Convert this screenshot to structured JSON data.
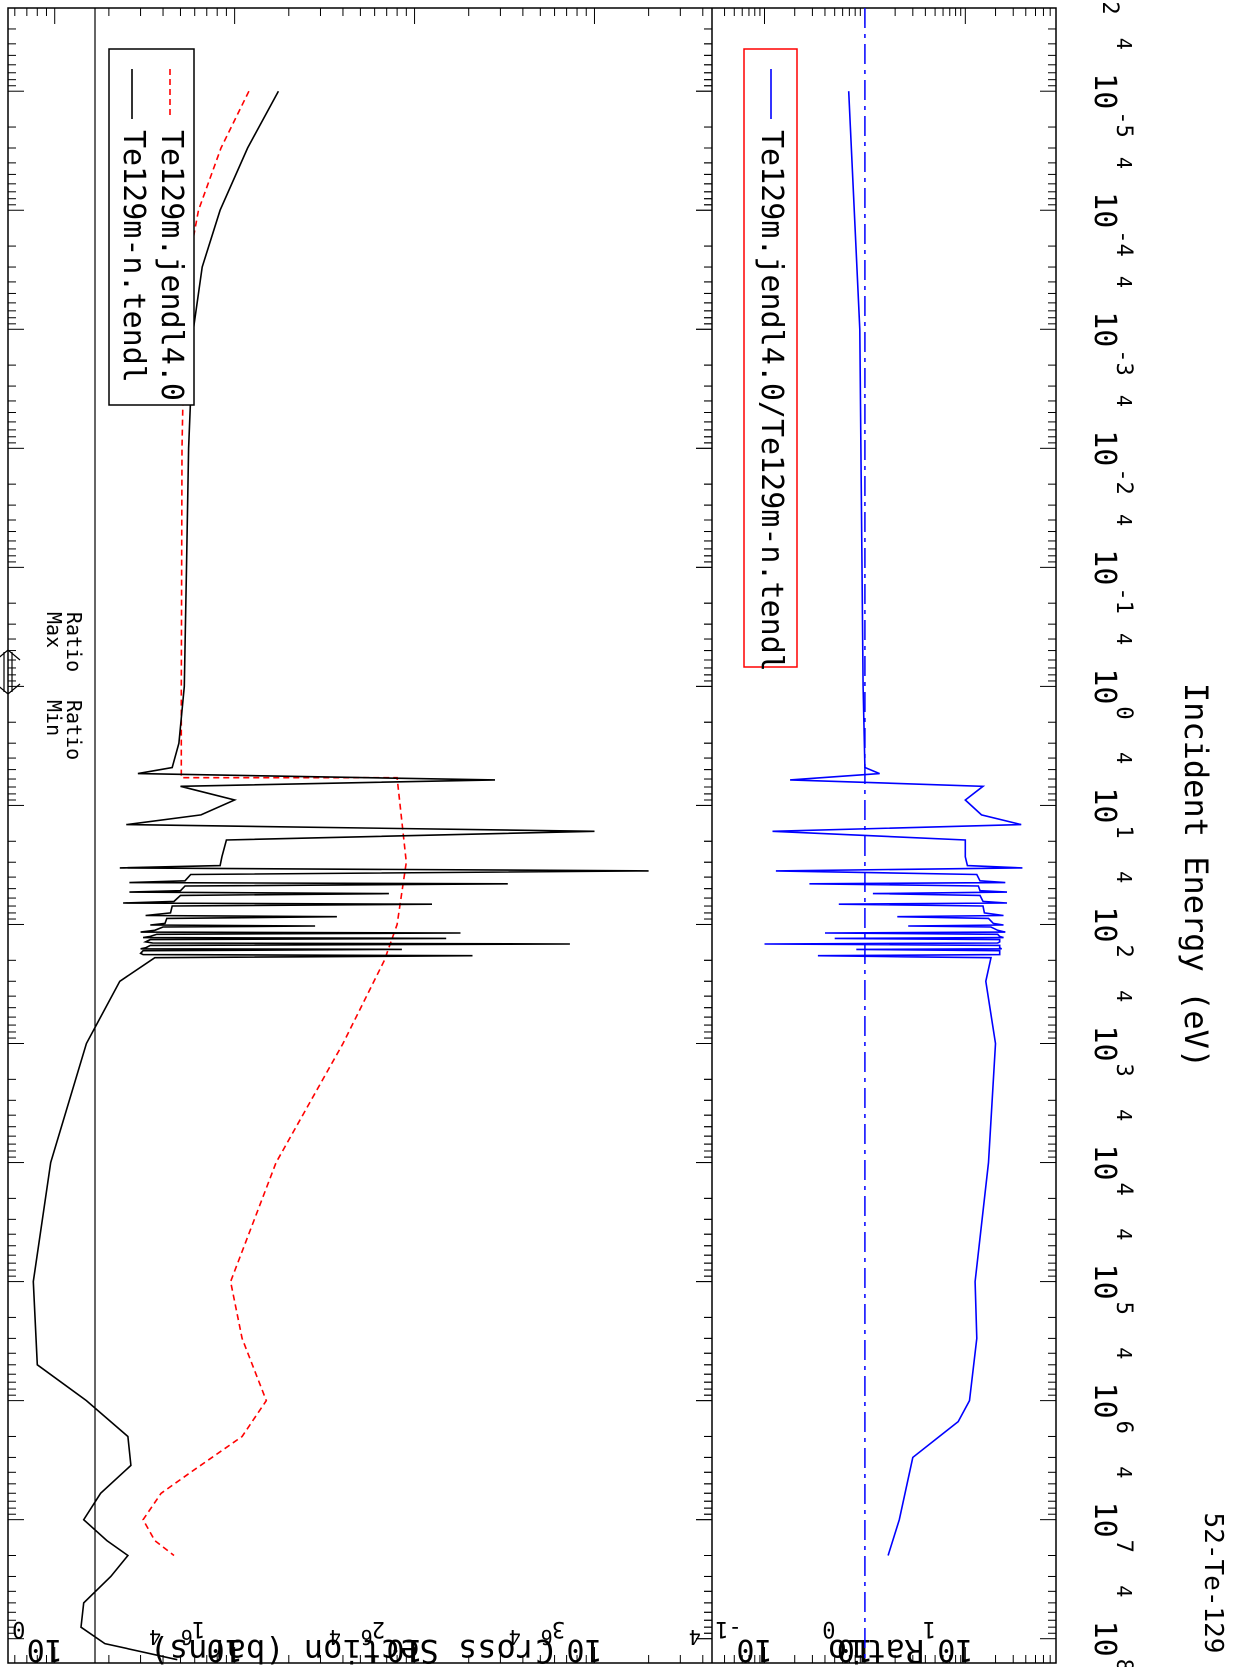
{
  "chart_data": {
    "type": "line",
    "orientation": "rotated-90-clockwise",
    "tag": "52-Te-129",
    "xlabel": "Incident Energy (eV)",
    "xscale": "log",
    "xlim": [
      2e-06,
      160000000.0
    ],
    "x_ticks": [
      {
        "major": "10",
        "exp": "-5"
      },
      {
        "major": "10",
        "exp": "-4"
      },
      {
        "major": "10",
        "exp": "-3"
      },
      {
        "major": "10",
        "exp": "-2"
      },
      {
        "major": "10",
        "exp": "-1"
      },
      {
        "major": "10",
        "exp": "0"
      },
      {
        "major": "10",
        "exp": "1"
      },
      {
        "major": "10",
        "exp": "2"
      },
      {
        "major": "10",
        "exp": "3"
      },
      {
        "major": "10",
        "exp": "4"
      },
      {
        "major": "10",
        "exp": "5"
      },
      {
        "major": "10",
        "exp": "6"
      },
      {
        "major": "10",
        "exp": "7"
      },
      {
        "major": "10",
        "exp": "8"
      }
    ],
    "x_minor_labels": {
      "two": "2",
      "four": "4"
    },
    "top_panel": {
      "ylabel": "Cross Section (barns)",
      "yscale": "log",
      "ylim": [
        0.55,
        4500
      ],
      "y_ticks": [
        {
          "major": "10",
          "exp": "0"
        },
        {
          "major": "10",
          "exp": "1"
        },
        {
          "major": "10",
          "exp": "2"
        },
        {
          "major": "10",
          "exp": "3"
        }
      ],
      "y_minor_labels": {
        "four": "4",
        "six": "6"
      },
      "legend": {
        "position": "bottom-left",
        "border": "#000000"
      },
      "series": [
        {
          "name": "Te129m-n.tendl",
          "color": "#000000",
          "dash": "solid",
          "points": [
            [
              1e-05,
              17.5
            ],
            [
              3e-05,
              11.8
            ],
            [
              0.0001,
              8.3
            ],
            [
              0.0003,
              6.6
            ],
            [
              0.001,
              5.9
            ],
            [
              0.01,
              5.55
            ],
            [
              0.1,
              5.4
            ],
            [
              1,
              5.25
            ],
            [
              3,
              4.9
            ],
            [
              4.8,
              4.5
            ],
            [
              5.4,
              2.9
            ],
            [
              6.1,
              280
            ],
            [
              6.9,
              5.0
            ],
            [
              9,
              10
            ],
            [
              12,
              6.5
            ],
            [
              14.5,
              2.5
            ],
            [
              16.5,
              1000
            ],
            [
              19.5,
              9.0
            ],
            [
              27,
              8.5
            ],
            [
              32,
              8.3
            ],
            [
              33.5,
              2.3
            ],
            [
              35.5,
              2000
            ],
            [
              38,
              5.7
            ],
            [
              43,
              5.3
            ],
            [
              44.5,
              2.6
            ],
            [
              45.5,
              330
            ],
            [
              47.5,
              5.3
            ],
            [
              52,
              5.0
            ],
            [
              53.5,
              2.6
            ],
            [
              55,
              72
            ],
            [
              57,
              5.0
            ],
            [
              64,
              4.6
            ],
            [
              66,
              2.4
            ],
            [
              67.5,
              125
            ],
            [
              70,
              4.5
            ],
            [
              80,
              4.4
            ],
            [
              84,
              3.2
            ],
            [
              86,
              37
            ],
            [
              89,
              4.2
            ],
            [
              98,
              4.1
            ],
            [
              101,
              3.4
            ],
            [
              103,
              28
            ],
            [
              105,
              4.0
            ],
            [
              112,
              3.6
            ],
            [
              116,
              3.0
            ],
            [
              118,
              180
            ],
            [
              121,
              3.7
            ],
            [
              126,
              3.4
            ],
            [
              129,
              3.1
            ],
            [
              131,
              150
            ],
            [
              134,
              3.4
            ],
            [
              140,
              3.2
            ],
            [
              143,
              3.5
            ],
            [
              146,
              730
            ],
            [
              150,
              3.4
            ],
            [
              157,
              3.2
            ],
            [
              160,
              3.0
            ],
            [
              162,
              85
            ],
            [
              166,
              3.1
            ],
            [
              175,
              3.0
            ],
            [
              179,
              3.1
            ],
            [
              183,
              210
            ],
            [
              187,
              24
            ],
            [
              190,
              3.6
            ],
            [
              300,
              2.3
            ],
            [
              1000,
              1.5
            ],
            [
              10000.0,
              0.95
            ],
            [
              100000.0,
              0.76
            ],
            [
              500000.0,
              0.8
            ],
            [
              1000000.0,
              1.5
            ],
            [
              2000000.0,
              2.55
            ],
            [
              3500000.0,
              2.65
            ],
            [
              6000000.0,
              1.8
            ],
            [
              10000000.0,
              1.45
            ],
            [
              15000000.0,
              1.95
            ],
            [
              20000000.0,
              2.55
            ],
            [
              30000000.0,
              2.05
            ],
            [
              50000000.0,
              1.45
            ],
            [
              80000000.0,
              1.4
            ],
            [
              110000000.0,
              1.9
            ],
            [
              150000000.0,
              4.8
            ]
          ]
        },
        {
          "name": "Te129m.jendl4.0",
          "color": "#ff0000",
          "dash": "6,4",
          "points": [
            [
              1e-05,
              12
            ],
            [
              3e-05,
              8.4
            ],
            [
              0.0001,
              6.3
            ],
            [
              0.0003,
              5.5
            ],
            [
              0.001,
              5.25
            ],
            [
              0.01,
              5.1
            ],
            [
              1,
              5.05
            ],
            [
              5.85,
              5.05
            ],
            [
              5.85,
              80
            ],
            [
              30,
              90
            ],
            [
              100,
              80
            ],
            [
              200,
              68
            ],
            [
              1000,
              40
            ],
            [
              10000.0,
              17
            ],
            [
              100000.0,
              9.5
            ],
            [
              300000.0,
              11
            ],
            [
              1000000.0,
              15
            ],
            [
              2000000.0,
              11
            ],
            [
              4000000.0,
              5.7
            ],
            [
              6000000.0,
              3.9
            ],
            [
              10000000.0,
              3.1
            ],
            [
              15000000.0,
              3.6
            ],
            [
              20000000.0,
              4.6
            ]
          ]
        }
      ]
    },
    "bottom_panel": {
      "ylabel": "Ratio",
      "yscale": "log",
      "ylim": [
        0.03,
        80
      ],
      "y_ticks": [
        {
          "major": "10",
          "exp": "-1"
        },
        {
          "major": "10",
          "exp": "0"
        },
        {
          "major": "10",
          "exp": "1"
        }
      ],
      "reference_line": {
        "y": 1.0,
        "style": "dash-dot",
        "color": "#0000ff"
      },
      "legend": {
        "position": "bottom-left",
        "border": "#ff0000"
      },
      "series": [
        {
          "name": "Te129m.jendl4.0/Te129m-n.tendl",
          "color": "#0000ff",
          "dash": "solid",
          "points": [
            [
              1e-05,
              0.69
            ],
            [
              0.001,
              0.89
            ],
            [
              1,
              0.96
            ],
            [
              4.8,
              1.0
            ],
            [
              5.4,
              1.4
            ],
            [
              6.1,
              0.18
            ],
            [
              6.9,
              15
            ],
            [
              9,
              10
            ],
            [
              12,
              14.5
            ],
            [
              14.5,
              36
            ],
            [
              16.5,
              0.12
            ],
            [
              19.5,
              10
            ],
            [
              27,
              10
            ],
            [
              32,
              10.5
            ],
            [
              33.5,
              37
            ],
            [
              35.5,
              0.13
            ],
            [
              38,
              13
            ],
            [
              43,
              14
            ],
            [
              44.5,
              25
            ],
            [
              45.5,
              0.28
            ],
            [
              47.5,
              13.5
            ],
            [
              52,
              14
            ],
            [
              53.5,
              26
            ],
            [
              55,
              1.2
            ],
            [
              57,
              14
            ],
            [
              64,
              15
            ],
            [
              66,
              26
            ],
            [
              67.5,
              0.55
            ],
            [
              70,
              15
            ],
            [
              80,
              15.5
            ],
            [
              84,
              24
            ],
            [
              86,
              2.1
            ],
            [
              89,
              17
            ],
            [
              98,
              19
            ],
            [
              101,
              24
            ],
            [
              103,
              2.7
            ],
            [
              105,
              18
            ],
            [
              112,
              21
            ],
            [
              116,
              25
            ],
            [
              118,
              0.4
            ],
            [
              121,
              21
            ],
            [
              126,
              22
            ],
            [
              129,
              24
            ],
            [
              131,
              0.5
            ],
            [
              134,
              22
            ],
            [
              140,
              22
            ],
            [
              143,
              21
            ],
            [
              146,
              0.1
            ],
            [
              150,
              22
            ],
            [
              157,
              22
            ],
            [
              160,
              23
            ],
            [
              162,
              0.82
            ],
            [
              166,
              22
            ],
            [
              175,
              22
            ],
            [
              179,
              22
            ],
            [
              183,
              0.34
            ],
            [
              187,
              2.5
            ],
            [
              190,
              18
            ],
            [
              300,
              16
            ],
            [
              1000,
              20
            ],
            [
              10000.0,
              17
            ],
            [
              100000.0,
              12.5
            ],
            [
              300000.0,
              13
            ],
            [
              1000000.0,
              11
            ],
            [
              1500000.0,
              8.5
            ],
            [
              2000000.0,
              5.5
            ],
            [
              3000000.0,
              3.0
            ],
            [
              10000000.0,
              2.2
            ],
            [
              20000000.0,
              1.7
            ]
          ]
        }
      ]
    },
    "annotation": {
      "max_label": "Max",
      "max_sub": "Ratio",
      "min_label": "Min",
      "min_sub": "Ratio"
    }
  }
}
